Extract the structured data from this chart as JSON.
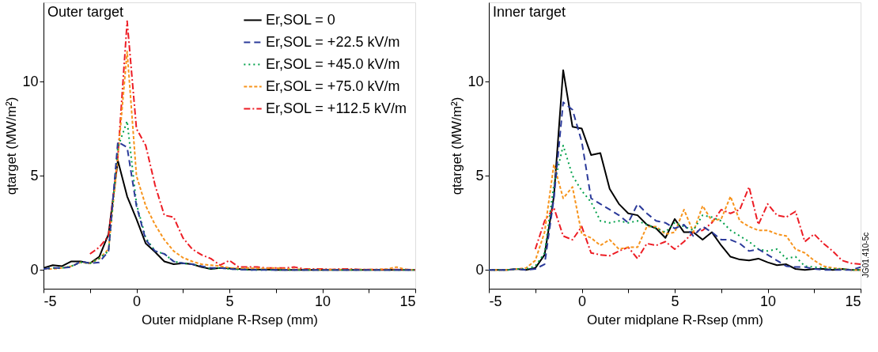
{
  "chart_data": [
    {
      "type": "line",
      "title": "Outer target",
      "xlabel": "Outer midplane R-Rsep (mm)",
      "ylabel": "qtarget (MW/m²)",
      "x": [
        -5,
        -4.5,
        -4,
        -3.5,
        -3,
        -2.5,
        -2,
        -1.5,
        -1,
        -0.5,
        0,
        0.5,
        1,
        1.5,
        2,
        2.5,
        3,
        3.5,
        4,
        4.5,
        5,
        5.5,
        6,
        6.5,
        7,
        7.5,
        8,
        8.5,
        9,
        9.5,
        10,
        10.5,
        11,
        11.5,
        12,
        12.5,
        13,
        13.5,
        14,
        14.5,
        15
      ],
      "xlim": [
        -5,
        15
      ],
      "xticks": [
        -5,
        {
          "value": -2.5,
          "label": null
        },
        0,
        {
          "value": 2.5,
          "label": null
        },
        5,
        {
          "value": 7.5,
          "label": null
        },
        10,
        {
          "value": 12.5,
          "label": null
        },
        15
      ],
      "ylim": [
        -1,
        14.2
      ],
      "yticks": [
        0,
        5,
        10
      ],
      "grid": false,
      "legend": "top right",
      "series": [
        {
          "name": "Er,SOL = 0",
          "color": "#000000",
          "line_style": "solid",
          "values": [
            0.1,
            0.25,
            0.2,
            0.45,
            0.45,
            0.35,
            0.7,
            1.9,
            5.8,
            3.9,
            2.7,
            1.4,
            0.95,
            0.45,
            0.3,
            0.35,
            0.3,
            0.15,
            0.05,
            0.1,
            0.08,
            0.05,
            0.02,
            0.02,
            0.02,
            0,
            0,
            0,
            0,
            0,
            0,
            0,
            0,
            0,
            0,
            0,
            0,
            0,
            0,
            0,
            0
          ]
        },
        {
          "name": "Er,SOL = +22.5 kV/m",
          "color": "#2b3a9a",
          "line_style": "dashed",
          "values": [
            0.05,
            0.1,
            0.1,
            0.15,
            0.45,
            0.35,
            0.4,
            1.0,
            6.8,
            6.5,
            3.4,
            1.6,
            1.0,
            0.85,
            0.45,
            0.35,
            0.3,
            0.2,
            0.1,
            0.1,
            0.05,
            0.02,
            0,
            0,
            0,
            0,
            0,
            0,
            0,
            0,
            0,
            0,
            0,
            0,
            0,
            0,
            0,
            0,
            0,
            0,
            0
          ]
        },
        {
          "name": "Er,SOL = +45.0 kV/m",
          "color": "#00a04a",
          "line_style": "dotted",
          "values": [
            0.05,
            0.1,
            0.1,
            0.2,
            0.4,
            0.35,
            0.6,
            1.0,
            6.5,
            7.9,
            3.5,
            1.7,
            1.0,
            0.85,
            0.45,
            0.35,
            0.3,
            0.2,
            0.05,
            0.1,
            0.05,
            0.02,
            0,
            0,
            0,
            0,
            0,
            0,
            0,
            0,
            0,
            0,
            0,
            0,
            0,
            0,
            0,
            0,
            0,
            0,
            0
          ]
        },
        {
          "name": "Er,SOL = +75.0 kV/m",
          "color": "#f7941d",
          "line_style": "dashed",
          "values": [
            0.05,
            0.05,
            0.1,
            0.2,
            0.4,
            0.35,
            0.6,
            1.1,
            6.0,
            11.6,
            5.0,
            3.4,
            2.4,
            1.6,
            1.0,
            0.65,
            0.45,
            0.3,
            0.25,
            0.2,
            0.1,
            0.08,
            0.1,
            0.08,
            0.08,
            0.1,
            0.05,
            0.03,
            0.03,
            0.02,
            0.02,
            0.02,
            0.02,
            0.02,
            0.02,
            0.02,
            0.02,
            0.05,
            0.15,
            0.02,
            0
          ]
        },
        {
          "name": "Er,SOL = +112.5 kV/m",
          "color": "#ed1c24",
          "line_style": "dashdot",
          "values": [
            null,
            null,
            null,
            null,
            null,
            0.85,
            1.2,
            1.8,
            6.0,
            13.2,
            7.5,
            6.6,
            4.5,
            2.9,
            2.8,
            1.7,
            1.1,
            0.8,
            0.6,
            0.25,
            0.5,
            0.15,
            0.15,
            0.15,
            0.1,
            0.1,
            0.1,
            0.15,
            0.05,
            0.05,
            0.05,
            0.02,
            0.05,
            0.05,
            0.02,
            0.02,
            0.02,
            0.02,
            0.02,
            0.02,
            0
          ]
        }
      ]
    },
    {
      "type": "line",
      "title": "Inner target",
      "xlabel": "Outer midplane R-Rsep (mm)",
      "ylabel": "qtarget (MW/m²)",
      "annotations": [
        "JG01.410-5c"
      ],
      "x": [
        -5,
        -4.5,
        -4,
        -3.5,
        -3,
        -2.5,
        -2,
        -1.5,
        -1,
        -0.5,
        0,
        0.5,
        1,
        1.5,
        2,
        2.5,
        3,
        3.5,
        4,
        4.5,
        5,
        5.5,
        6,
        6.5,
        7,
        7.5,
        8,
        8.5,
        9,
        9.5,
        10,
        10.5,
        11,
        11.5,
        12,
        12.5,
        13,
        13.5,
        14,
        14.5,
        15
      ],
      "xlim": [
        -5,
        15
      ],
      "xticks": [
        -5,
        {
          "value": -2.5,
          "label": null
        },
        0,
        {
          "value": 2.5,
          "label": null
        },
        5,
        {
          "value": 7.5,
          "label": null
        },
        10,
        {
          "value": 12.5,
          "label": null
        },
        15
      ],
      "ylim": [
        -1,
        14.2
      ],
      "yticks": [
        0,
        5,
        10
      ],
      "grid": false,
      "series": [
        {
          "color": "#000000",
          "line_style": "solid",
          "values": [
            0,
            0,
            0,
            0.05,
            0,
            0.1,
            0.8,
            3.9,
            10.6,
            7.6,
            7.5,
            6.1,
            6.2,
            4.3,
            3.5,
            3.0,
            2.9,
            2.4,
            2.2,
            1.7,
            2.7,
            2.0,
            2.0,
            1.6,
            2.0,
            1.3,
            0.7,
            0.55,
            0.5,
            0.6,
            0.4,
            0.25,
            0.3,
            0.05,
            0,
            0.05,
            0.05,
            0,
            0.05,
            0,
            0
          ]
        },
        {
          "color": "#2b3a9a",
          "line_style": "dashed",
          "values": [
            0,
            0,
            0,
            0.05,
            0,
            0.05,
            0.3,
            3.8,
            8.9,
            8.5,
            6.8,
            3.8,
            3.5,
            3.2,
            2.9,
            2.5,
            3.5,
            3.0,
            2.6,
            2.5,
            2.2,
            2.4,
            1.8,
            2.3,
            2.0,
            1.6,
            1.6,
            1.4,
            1.0,
            1.1,
            0.8,
            0.5,
            0.2,
            0.15,
            0.15,
            0.05,
            0,
            0,
            0,
            0,
            0.15
          ]
        },
        {
          "color": "#00a04a",
          "line_style": "dotted",
          "values": [
            0,
            0,
            0,
            0.05,
            0.05,
            0.2,
            0.9,
            4.5,
            6.6,
            5.0,
            4.2,
            3.6,
            2.6,
            2.5,
            2.6,
            2.5,
            2.6,
            2.4,
            2.2,
            2.0,
            2.5,
            2.3,
            2.1,
            2.9,
            2.8,
            2.6,
            2.1,
            1.8,
            1.5,
            1.1,
            1.0,
            1.1,
            0.6,
            0.7,
            0.2,
            0.15,
            0.1,
            0.05,
            0.05,
            0,
            0
          ]
        },
        {
          "color": "#f7941d",
          "line_style": "dashed",
          "values": [
            0,
            0,
            0,
            0.05,
            0.1,
            0.5,
            2.0,
            5.6,
            3.8,
            4.4,
            1.9,
            1.7,
            1.3,
            1.6,
            1.1,
            1.2,
            1.2,
            2.3,
            2.3,
            1.9,
            2.0,
            3.2,
            2.0,
            3.4,
            2.6,
            2.7,
            3.9,
            2.6,
            2.3,
            2.1,
            2.1,
            1.9,
            1.8,
            1.1,
            0.9,
            0.5,
            0.2,
            0.1,
            0.05,
            0,
            0
          ]
        },
        {
          "color": "#ed1c24",
          "line_style": "dashdot",
          "values": [
            null,
            null,
            null,
            null,
            null,
            1.1,
            2.6,
            3.3,
            1.8,
            1.6,
            2.3,
            0.9,
            0.8,
            0.75,
            1.0,
            1.2,
            0.6,
            1.4,
            1.3,
            1.5,
            1.1,
            1.5,
            2.0,
            2.1,
            2.5,
            3.2,
            3.0,
            3.2,
            4.4,
            2.4,
            3.5,
            2.9,
            2.8,
            3.1,
            1.5,
            1.9,
            1.4,
            1.0,
            0.5,
            0.35,
            0.3
          ]
        }
      ]
    }
  ]
}
